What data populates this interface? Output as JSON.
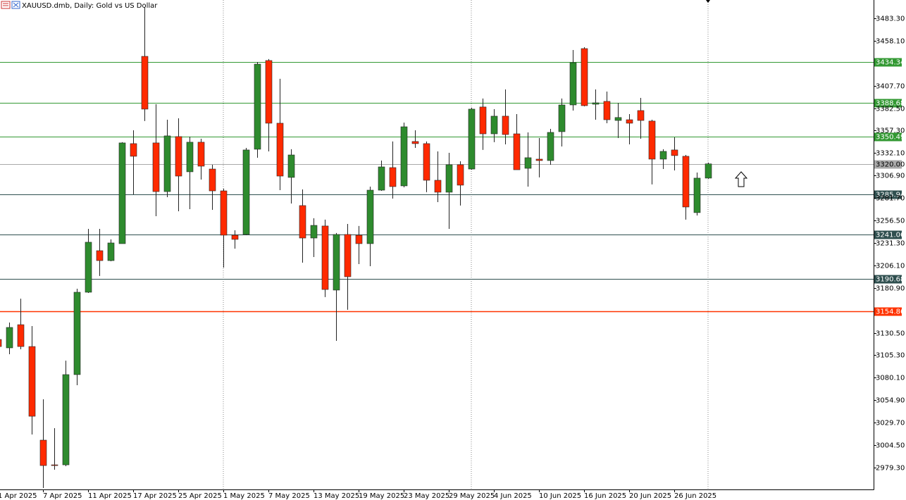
{
  "chart_data": {
    "type": "candlestick",
    "title": "XAUUSD.dmb, Daily:  Gold vs US Dollar",
    "categories": [
      "1 Apr 2025",
      null,
      null,
      null,
      "7 Apr 2025",
      null,
      null,
      null,
      "11 Apr 2025",
      null,
      null,
      null,
      "17 Apr 2025",
      null,
      null,
      null,
      "25 Apr 2025",
      null,
      null,
      null,
      "1 May 2025",
      null,
      null,
      null,
      "7 May 2025",
      null,
      null,
      null,
      "13 May 2025",
      null,
      null,
      null,
      "19 May 2025",
      null,
      null,
      null,
      "23 May 2025",
      null,
      null,
      null,
      "29 May 2025",
      null,
      null,
      null,
      "4 Jun 2025",
      null,
      null,
      null,
      "10 Jun 2025",
      null,
      null,
      null,
      "16 Jun 2025",
      null,
      null,
      null,
      "20 Jun 2025",
      null,
      null,
      null,
      "26 Jun 2025",
      null,
      null,
      null
    ],
    "open": [
      3123.0,
      3113.6,
      3139.6,
      3115.1,
      3010.1,
      2982.4,
      2982.4,
      3083.6,
      3176.0,
      3222.6,
      3211.5,
      3230.5,
      3342.7,
      3440.6,
      3343.5,
      3288.9,
      3350.6,
      3311.1,
      3344.3,
      3314.2,
      3289.7,
      3240.0,
      3240.8,
      3336.4,
      3435.9,
      3365.6,
      3304.8,
      3273.2,
      3236.8,
      3250.3,
      3178.4,
      3240.8,
      3240.0,
      3230.5,
      3290.5,
      3315.8,
      3295.3,
      3345.1,
      3342.7,
      3301.6,
      3288.2,
      3319.0,
      3314.2,
      3383.8,
      3353.7,
      3373.5,
      3353.7,
      3315.0,
      3325.3,
      3323.7,
      3356.1,
      3386.1,
      3449.3,
      3386.9,
      3390.1,
      3368.7,
      3369.5,
      3379.8,
      3368.0,
      3325.3,
      3335.6,
      3328.5,
      3265.3,
      3304.0
    ],
    "high": [
      3128.5,
      3142.0,
      3168.8,
      3138.1,
      3055.9,
      3023.5,
      3099.3,
      3179.9,
      3247.1,
      3247.1,
      3235.3,
      3344.3,
      3357.7,
      3495.9,
      3386.9,
      3369.5,
      3371.1,
      3350.6,
      3348.2,
      3319.0,
      3292.1,
      3245.5,
      3337.9,
      3434.3,
      3437.5,
      3415.4,
      3336.4,
      3291.3,
      3259.0,
      3257.4,
      3242.4,
      3252.6,
      3250.3,
      3294.5,
      3323.7,
      3345.1,
      3366.3,
      3357.7,
      3345.1,
      3334.0,
      3332.4,
      3322.9,
      3383.0,
      3393.3,
      3381.4,
      3403.5,
      3375.8,
      3355.3,
      3349.0,
      3359.2,
      3393.3,
      3447.7,
      3450.9,
      3403.5,
      3401.1,
      3388.5,
      3375.8,
      3394.0,
      3369.5,
      3336.4,
      3349.8,
      3330.0,
      3310.3,
      3321.4
    ],
    "low": [
      3108.8,
      3106.5,
      3112.0,
      3016.4,
      2956.4,
      2976.9,
      2980.9,
      3071.7,
      3175.2,
      3194.2,
      3210.7,
      3230.5,
      3285.8,
      3368.0,
      3261.3,
      3282.6,
      3266.8,
      3269.2,
      3302.4,
      3268.4,
      3203.6,
      3224.9,
      3240.0,
      3326.9,
      3334.0,
      3290.5,
      3275.5,
      3209.2,
      3215.5,
      3170.5,
      3121.5,
      3156.3,
      3207.6,
      3205.2,
      3289.7,
      3281.0,
      3293.7,
      3337.9,
      3288.2,
      3277.1,
      3247.1,
      3273.2,
      3313.4,
      3335.6,
      3344.3,
      3341.9,
      3313.4,
      3294.5,
      3304.8,
      3319.0,
      3339.5,
      3379.8,
      3384.5,
      3369.5,
      3365.6,
      3349.0,
      3341.9,
      3348.2,
      3296.9,
      3314.2,
      3312.6,
      3257.4,
      3262.1,
      3303.2
    ],
    "close": [
      3115.1,
      3136.5,
      3115.1,
      3036.9,
      2981.6,
      2981.6,
      3083.6,
      3176.0,
      3232.1,
      3211.5,
      3231.3,
      3343.5,
      3328.5,
      3381.4,
      3288.9,
      3351.4,
      3306.3,
      3344.3,
      3317.4,
      3289.7,
      3240.0,
      3235.3,
      3335.6,
      3431.9,
      3365.6,
      3306.3,
      3330.0,
      3236.8,
      3251.0,
      3179.1,
      3240.8,
      3193.4,
      3230.5,
      3290.5,
      3316.6,
      3294.5,
      3361.6,
      3342.7,
      3301.6,
      3288.2,
      3319.0,
      3296.1,
      3381.4,
      3353.7,
      3373.5,
      3352.9,
      3313.4,
      3326.9,
      3323.7,
      3355.3,
      3386.1,
      3433.5,
      3385.3,
      3388.5,
      3369.5,
      3372.0,
      3365.6,
      3368.7,
      3325.3,
      3334.0,
      3329.3,
      3271.6,
      3304.0,
      3320.0
    ],
    "up_color": "#2e8b2e",
    "down_color": "#ff2a00",
    "ylim": [
      2954.8,
      3503.8
    ],
    "yticks": [
      {
        "value": 3483.3,
        "label": "3483.30"
      },
      {
        "value": 3458.1,
        "label": "3458.10"
      },
      {
        "value": 3407.7,
        "label": "3407.70"
      },
      {
        "value": 3382.5,
        "label": "3382.50"
      },
      {
        "value": 3357.3,
        "label": "3357.30"
      },
      {
        "value": 3332.1,
        "label": "3332.10"
      },
      {
        "value": 3306.9,
        "label": "3306.90"
      },
      {
        "value": 3281.7,
        "label": "3281.70"
      },
      {
        "value": 3256.5,
        "label": "3256.50"
      },
      {
        "value": 3231.3,
        "label": "3231.30"
      },
      {
        "value": 3206.1,
        "label": "3206.10"
      },
      {
        "value": 3180.9,
        "label": "3180.90"
      },
      {
        "value": 3130.5,
        "label": "3130.50"
      },
      {
        "value": 3105.3,
        "label": "3105.30"
      },
      {
        "value": 3080.1,
        "label": "3080.10"
      },
      {
        "value": 3054.9,
        "label": "3054.90"
      },
      {
        "value": 3029.7,
        "label": "3029.70"
      },
      {
        "value": 3004.5,
        "label": "3004.50"
      },
      {
        "value": 2979.3,
        "label": "2979.30"
      }
    ],
    "levels": {
      "values": [
        3434.34,
        3388.68,
        3350.49,
        3320.0,
        3285.94,
        3241.06,
        3190.68,
        3154.86
      ],
      "value_labels": [
        "3434.34",
        "3388.68",
        "3350.49",
        "3320.00",
        "3285.94",
        "3241.06",
        "3190.68",
        "3154.86"
      ],
      "colors": [
        "#339933",
        "#339933",
        "#339933",
        "#a9a9a9",
        "#2f4f4f",
        "#2f4f4f",
        "#2f4f4f",
        "#ff3300"
      ]
    }
  }
}
